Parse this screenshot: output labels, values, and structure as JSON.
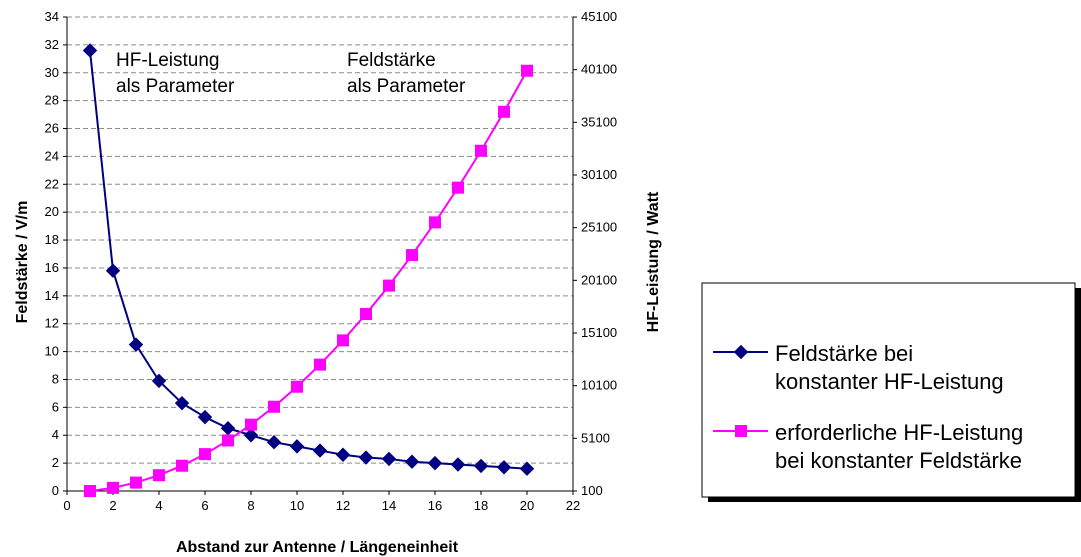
{
  "chart_data": {
    "type": "line",
    "title": "",
    "xlabel": "Abstand zur Antenne / Längeneinheit",
    "ylabel_left": "Feldstärke / V/m",
    "ylabel_right": "HF-Leistung / Watt",
    "xlim": [
      0,
      22
    ],
    "xticks": [
      "0",
      "2",
      "4",
      "6",
      "8",
      "10",
      "12",
      "14",
      "16",
      "18",
      "20",
      "22"
    ],
    "ylim_left": [
      0,
      34
    ],
    "yticks_left": [
      "0",
      "2",
      "4",
      "6",
      "8",
      "10",
      "12",
      "14",
      "16",
      "18",
      "20",
      "22",
      "24",
      "26",
      "28",
      "30",
      "32",
      "34"
    ],
    "ylim_right": [
      100,
      45100
    ],
    "yticks_right": [
      "100",
      "5100",
      "10100",
      "15100",
      "20100",
      "25100",
      "30100",
      "35100",
      "40100",
      "45100"
    ],
    "grid": "horizontal dashed",
    "legend_position": "right",
    "x": [
      1,
      2,
      3,
      4,
      5,
      6,
      7,
      8,
      9,
      10,
      11,
      12,
      13,
      14,
      15,
      16,
      17,
      18,
      19,
      20
    ],
    "series": [
      {
        "name": "Feldstärke bei konstanter HF-Leistung",
        "axis": "left",
        "color": "#000080",
        "marker": "diamond",
        "values": [
          31.6,
          15.8,
          10.5,
          7.9,
          6.3,
          5.3,
          4.5,
          4.0,
          3.5,
          3.2,
          2.9,
          2.6,
          2.4,
          2.3,
          2.1,
          2.0,
          1.9,
          1.8,
          1.7,
          1.6
        ]
      },
      {
        "name": "erforderliche HF-Leistung bei konstanter Feldstärke",
        "axis": "right",
        "color": "#ff00ff",
        "marker": "square",
        "values": [
          100,
          400,
          900,
          1600,
          2500,
          3600,
          4900,
          6400,
          8100,
          10000,
          12100,
          14400,
          16900,
          19600,
          22500,
          25600,
          28900,
          32400,
          36100,
          40000
        ]
      }
    ],
    "annotations": [
      {
        "lines": [
          "HF-Leistung",
          "als Parameter"
        ]
      },
      {
        "lines": [
          "Feldstärke",
          "als Parameter"
        ]
      }
    ],
    "legend": {
      "entries": [
        {
          "lines": [
            "Feldstärke bei",
            "konstanter HF-Leistung"
          ]
        },
        {
          "lines": [
            "erforderliche HF-Leistung",
            "bei konstanter Feldstärke"
          ]
        }
      ]
    }
  }
}
